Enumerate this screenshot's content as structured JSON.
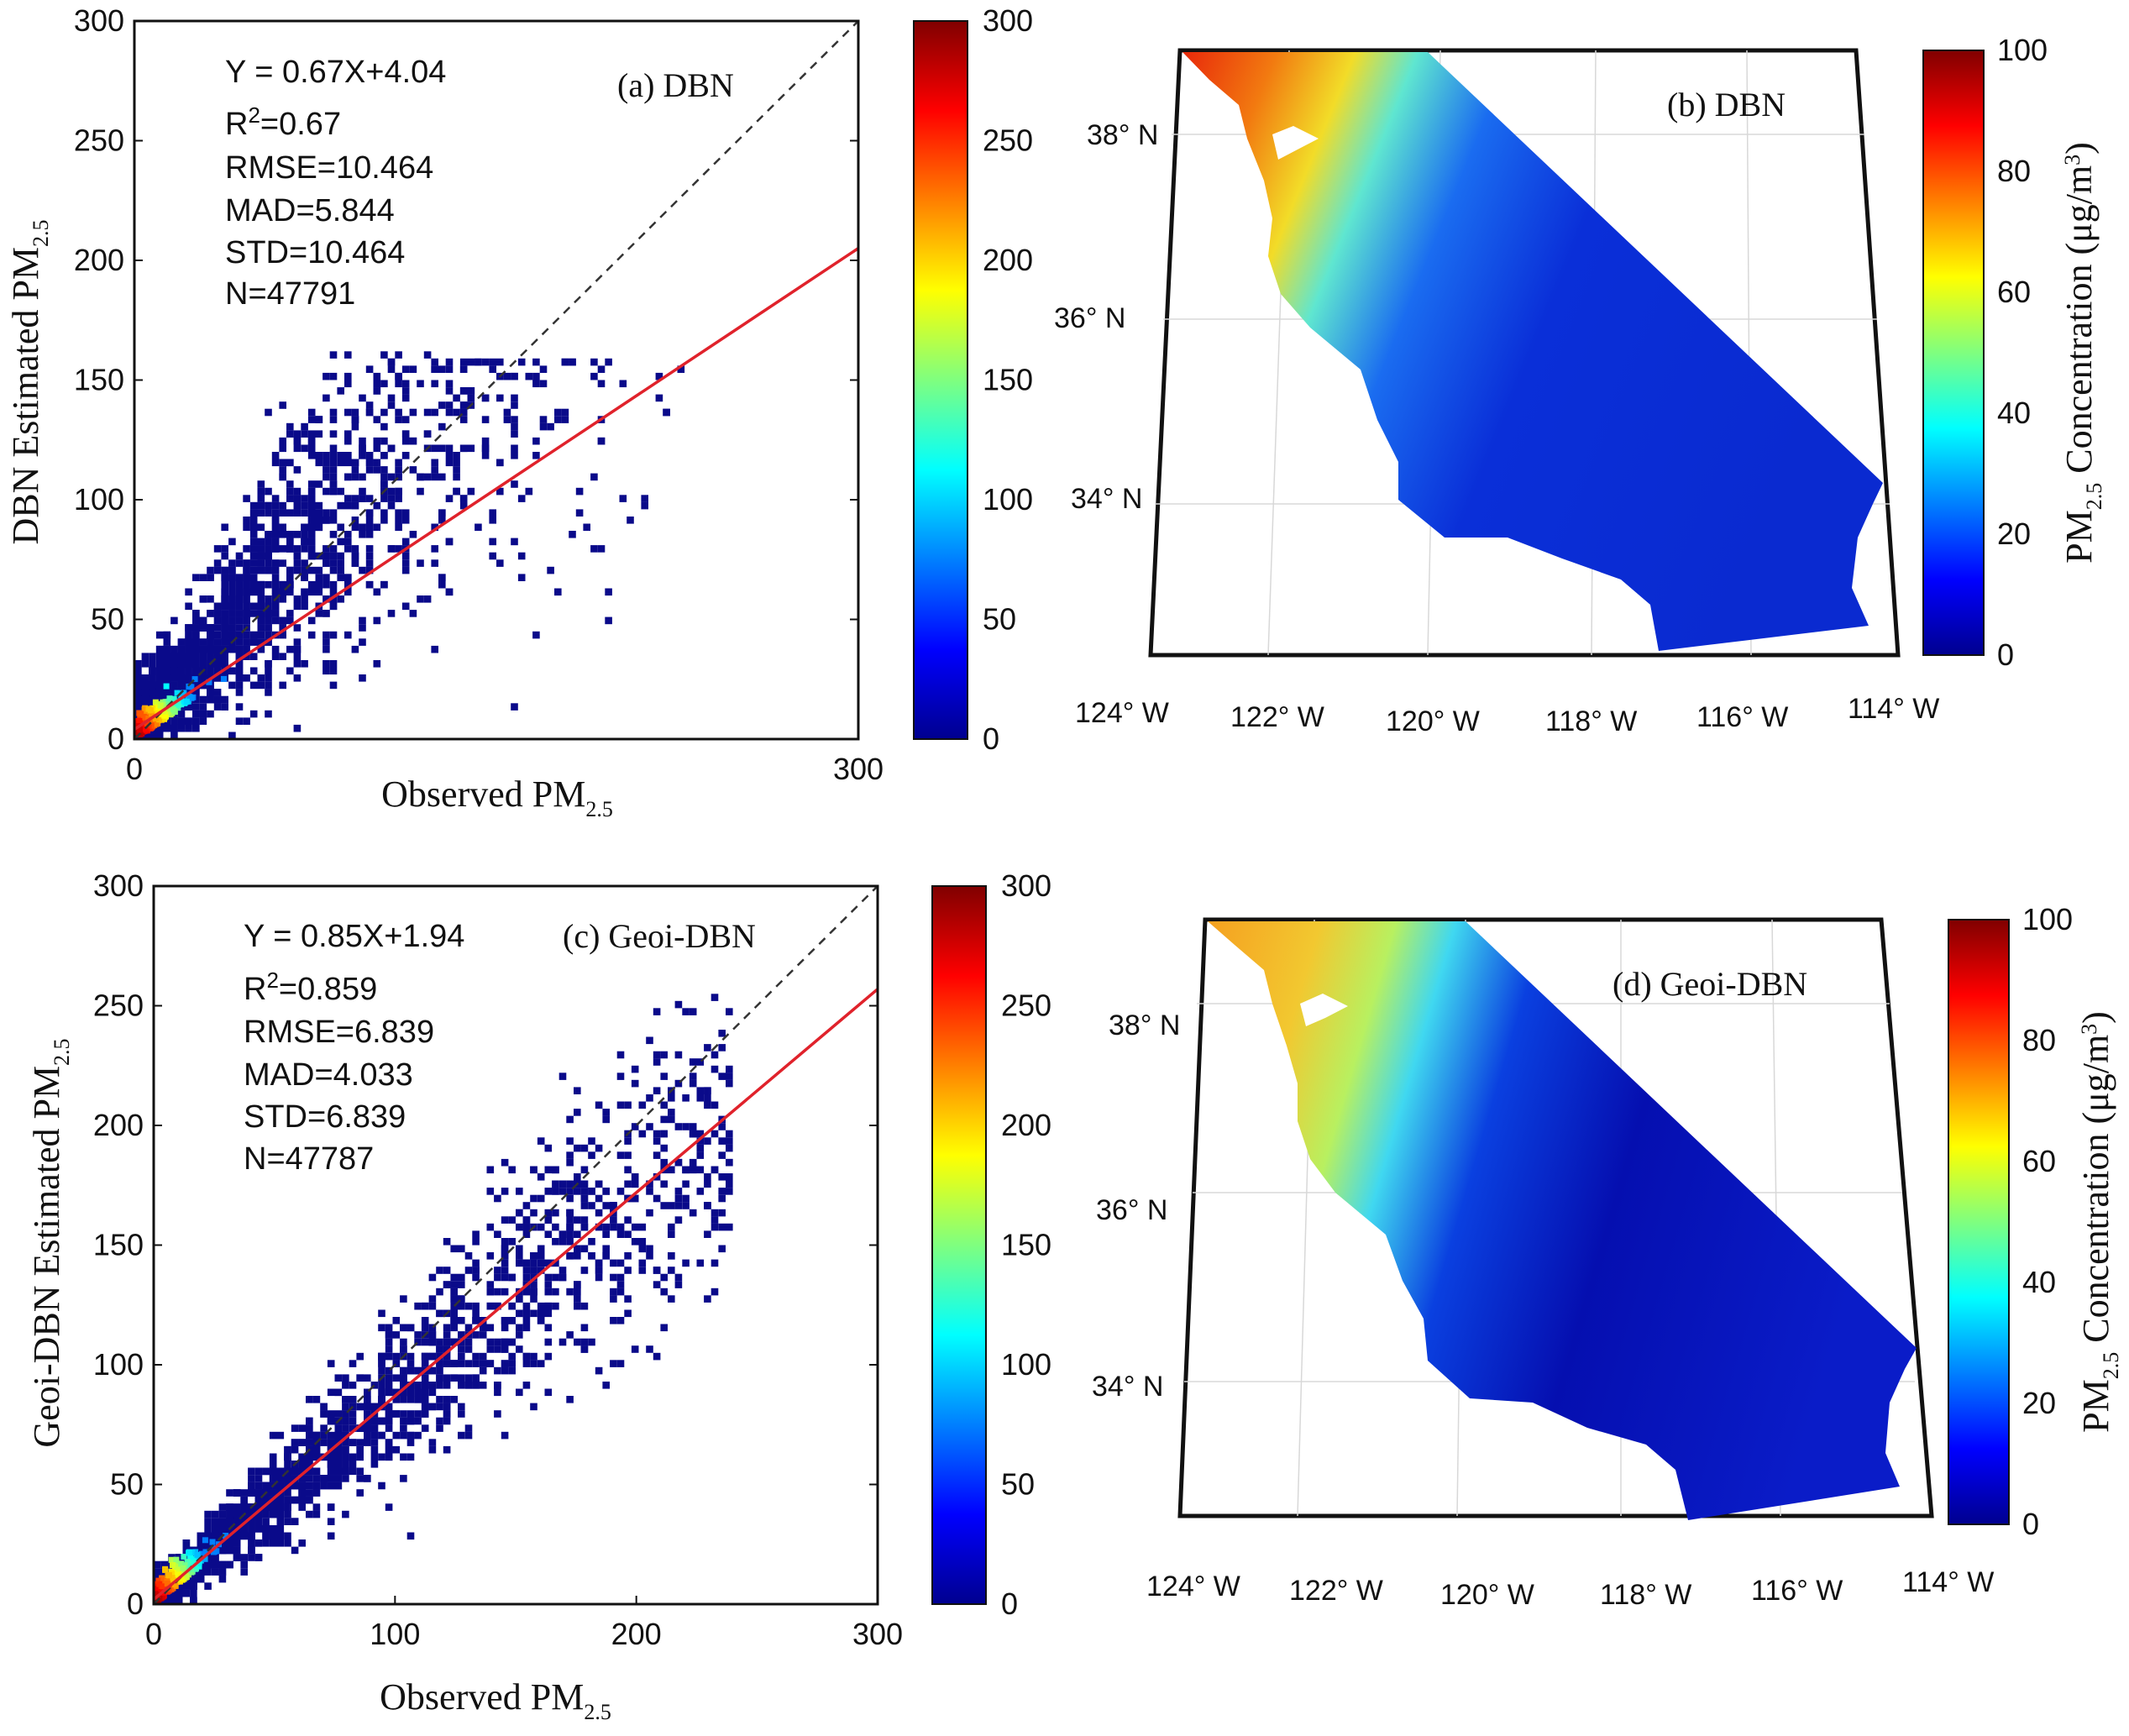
{
  "chart_data": [
    {
      "type": "scatter",
      "panel_label": "(a) DBN",
      "xlabel": "Observed PM",
      "xlabel_sub": "2.5",
      "ylabel": "DBN Estimated PM",
      "ylabel_sub": "2.5",
      "xlim": [
        0,
        300
      ],
      "ylim": [
        0,
        300
      ],
      "xticks": [
        "0",
        "300"
      ],
      "xtick_values": [
        0,
        300
      ],
      "yticks": [
        "0",
        "50",
        "100",
        "150",
        "200",
        "250",
        "300"
      ],
      "ytick_values": [
        0,
        50,
        100,
        150,
        200,
        250,
        300
      ],
      "stats": {
        "equation": "Y = 0.67X+4.04",
        "r2_prefix": "R",
        "r2_sup": "2",
        "r2_value": "=0.67",
        "rmse": "RMSE=10.464",
        "mad": "MAD=5.844",
        "std": "STD=10.464",
        "n": "N=47791"
      },
      "fit": {
        "slope": 0.67,
        "intercept": 4.04
      },
      "one_to_one": true,
      "density_colorbar": {
        "min": 0,
        "max": 300,
        "ticks": [
          "0",
          "50",
          "100",
          "150",
          "200",
          "250",
          "300"
        ]
      }
    },
    {
      "type": "scatter",
      "panel_label": "(c) Geoi-DBN",
      "xlabel": "Observed PM",
      "xlabel_sub": "2.5",
      "ylabel": "Geoi-DBN Estimated PM",
      "ylabel_sub": "2.5",
      "xlim": [
        0,
        300
      ],
      "ylim": [
        0,
        300
      ],
      "xticks": [
        "0",
        "100",
        "200",
        "300"
      ],
      "xtick_values": [
        0,
        100,
        200,
        300
      ],
      "yticks": [
        "0",
        "50",
        "100",
        "150",
        "200",
        "250",
        "300"
      ],
      "ytick_values": [
        0,
        50,
        100,
        150,
        200,
        250,
        300
      ],
      "stats": {
        "equation": "Y = 0.85X+1.94",
        "r2_prefix": "R",
        "r2_sup": "2",
        "r2_value": "=0.859",
        "rmse": "RMSE=6.839",
        "mad": "MAD=4.033",
        "std": "STD=6.839",
        "n": "N=47787"
      },
      "fit": {
        "slope": 0.85,
        "intercept": 1.94
      },
      "one_to_one": true,
      "density_colorbar": {
        "min": 0,
        "max": 300,
        "ticks": [
          "0",
          "50",
          "100",
          "150",
          "200",
          "250",
          "300"
        ]
      }
    },
    {
      "type": "heatmap",
      "panel_label": "(b) DBN",
      "lat_labels": [
        "38° N",
        "36° N",
        "34° N"
      ],
      "lon_labels": [
        "124° W",
        "122° W",
        "120° W",
        "118° W",
        "116° W",
        "114° W"
      ],
      "colorbar_label": "PM2.5 Concentration (μg/m3)",
      "colorbar_ticks": [
        "0",
        "20",
        "40",
        "60",
        "80",
        "100"
      ],
      "colorbar_range": [
        0,
        100
      ]
    },
    {
      "type": "heatmap",
      "panel_label": "(d) Geoi-DBN",
      "lat_labels": [
        "38° N",
        "36° N",
        "34° N"
      ],
      "lon_labels": [
        "124° W",
        "122° W",
        "120° W",
        "118° W",
        "116° W",
        "114° W"
      ],
      "colorbar_label": "PM2.5 Concentration (μg/m3)",
      "colorbar_ticks": [
        "0",
        "20",
        "40",
        "60",
        "80",
        "100"
      ],
      "colorbar_range": [
        0,
        100
      ]
    }
  ],
  "map_labels": {
    "cbar_prefix": "PM",
    "cbar_sub": "2.5",
    "cbar_middle": " Concentration (μg/m",
    "cbar_sup": "3",
    "cbar_suffix": ")"
  }
}
